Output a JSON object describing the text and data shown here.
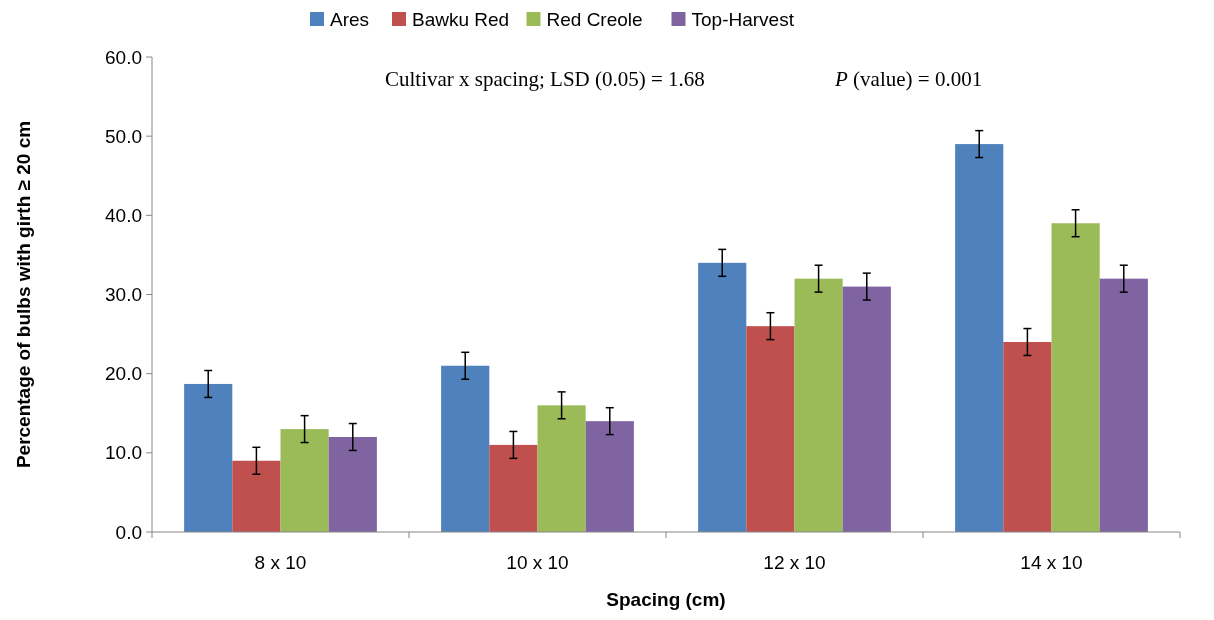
{
  "chart_data": {
    "type": "bar",
    "xlabel": "Spacing (cm)",
    "ylabel": "Percentage of bulbs with girth ≥ 20 cm",
    "categories": [
      "8 x 10",
      "10 x 10",
      "12 x 10",
      "14 x 10"
    ],
    "series": [
      {
        "name": "Ares",
        "color": "#4f81bd",
        "values": [
          18.7,
          21,
          34,
          49
        ],
        "errors": [
          1.7,
          1.7,
          1.7,
          1.7
        ]
      },
      {
        "name": "Bawku Red",
        "color": "#c0504d",
        "values": [
          9,
          11,
          26,
          24
        ],
        "errors": [
          1.7,
          1.7,
          1.7,
          1.7
        ]
      },
      {
        "name": "Red Creole",
        "color": "#9bbb59",
        "values": [
          13,
          16,
          32,
          39
        ],
        "errors": [
          1.7,
          1.7,
          1.7,
          1.7
        ]
      },
      {
        "name": "Top-Harvest",
        "color": "#8064a2",
        "values": [
          12,
          14,
          31,
          32
        ],
        "errors": [
          1.7,
          1.7,
          1.7,
          1.7
        ]
      }
    ],
    "ylim": [
      0,
      60
    ],
    "yticks": [
      {
        "value": 0,
        "label": "0.0"
      },
      {
        "value": 10,
        "label": "10.0"
      },
      {
        "value": 20,
        "label": "20.0"
      },
      {
        "value": 30,
        "label": "30.0"
      },
      {
        "value": 40,
        "label": "40.0"
      },
      {
        "value": 50,
        "label": "50.0"
      },
      {
        "value": 60,
        "label": "60.0"
      }
    ],
    "grid": false,
    "legend": "top",
    "annotations": [
      "Cultivar x spacing; LSD (0.05) = 1.68",
      "P (value) = 0.001"
    ]
  }
}
